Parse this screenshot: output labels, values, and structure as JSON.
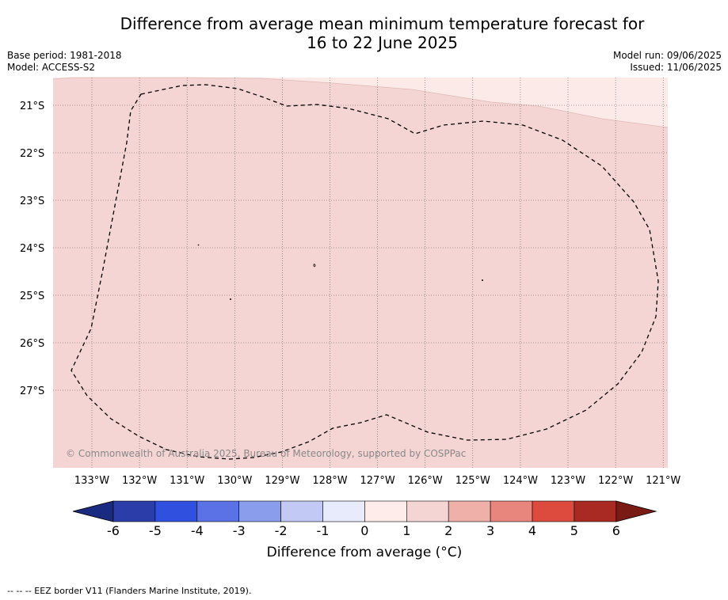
{
  "title_line1": "Difference from average mean minimum temperature forecast for",
  "title_line2": "16 to 22 June 2025",
  "base_period": "Base period: 1981-2018",
  "model": "Model: ACCESS-S2",
  "model_run": "Model run: 09/06/2025",
  "issued": "Issued: 11/06/2025",
  "copyright": "© Commonwealth of Australia 2025, Bureau of Meteorology, supported by COSPPac",
  "lon_labels": [
    "133°W",
    "132°W",
    "131°W",
    "130°W",
    "129°W",
    "128°W",
    "127°W",
    "126°W",
    "125°W",
    "124°W",
    "123°W",
    "122°W",
    "121°W"
  ],
  "lat_labels": [
    "21°S",
    "22°S",
    "23°S",
    "24°S",
    "25°S",
    "26°S",
    "27°S"
  ],
  "colorbar": {
    "ticks": [
      "-6",
      "-5",
      "-4",
      "-3",
      "-2",
      "-1",
      "0",
      "1",
      "2",
      "3",
      "4",
      "5",
      "6"
    ],
    "colors": [
      "#2a3da8",
      "#3050e0",
      "#5a72e6",
      "#8a9ded",
      "#c2c9f5",
      "#e8ebfb",
      "#fdecea",
      "#f5d5d3",
      "#efb0aa",
      "#e8857c",
      "#dd4a3e",
      "#a82a22"
    ],
    "under_color": "#1a2a80",
    "over_color": "#7a1a14",
    "label": "Difference from average (°C)"
  },
  "field_colors": {
    "main": "#f5d5d3",
    "light": "#fbeae8"
  },
  "footnote": "--  --  -- EEZ border V11 (Flanders Marine Institute, 2019)."
}
